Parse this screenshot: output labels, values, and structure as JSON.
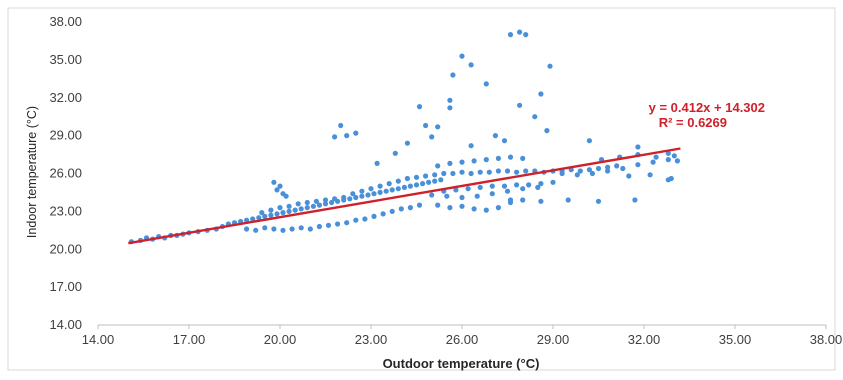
{
  "chart_data": {
    "type": "scatter",
    "xlabel": "Outdoor temperature (°C)",
    "ylabel": "Indoor temperature (°C)",
    "xlim": [
      14,
      38
    ],
    "ylim": [
      14,
      38
    ],
    "x_ticks": [
      "14.00",
      "17.00",
      "20.00",
      "23.00",
      "26.00",
      "29.00",
      "32.00",
      "35.00",
      "38.00"
    ],
    "y_ticks": [
      "14.00",
      "17.00",
      "20.00",
      "23.00",
      "26.00",
      "29.00",
      "32.00",
      "35.00",
      "38.00"
    ],
    "grid": false,
    "colors": {
      "points": "#4a90d9",
      "trendline": "#d0202a",
      "axis": "#bfbfbf"
    },
    "trendline": {
      "slope": 0.412,
      "intercept": 14.302,
      "x_range": [
        15.0,
        33.2
      ],
      "equation": "y = 0.412x + 14.302",
      "r_squared": "R² = 0.6269"
    },
    "series": [
      {
        "points": [
          [
            15.1,
            20.6
          ],
          [
            15.4,
            20.7
          ],
          [
            15.6,
            20.9
          ],
          [
            15.8,
            20.8
          ],
          [
            16.0,
            21.0
          ],
          [
            16.2,
            20.9
          ],
          [
            16.4,
            21.1
          ],
          [
            16.6,
            21.1
          ],
          [
            16.8,
            21.2
          ],
          [
            17.0,
            21.3
          ],
          [
            17.3,
            21.4
          ],
          [
            17.6,
            21.5
          ],
          [
            17.9,
            21.6
          ],
          [
            18.1,
            21.8
          ],
          [
            18.3,
            22.0
          ],
          [
            18.5,
            22.1
          ],
          [
            18.7,
            22.2
          ],
          [
            18.9,
            22.3
          ],
          [
            19.1,
            22.4
          ],
          [
            19.3,
            22.5
          ],
          [
            19.5,
            22.6
          ],
          [
            19.7,
            22.7
          ],
          [
            19.9,
            22.8
          ],
          [
            20.1,
            22.9
          ],
          [
            20.3,
            23.0
          ],
          [
            20.5,
            23.1
          ],
          [
            20.7,
            23.2
          ],
          [
            20.9,
            23.3
          ],
          [
            21.1,
            23.4
          ],
          [
            21.3,
            23.5
          ],
          [
            21.5,
            23.6
          ],
          [
            21.7,
            23.7
          ],
          [
            21.9,
            23.8
          ],
          [
            22.1,
            23.9
          ],
          [
            22.3,
            24.0
          ],
          [
            22.5,
            24.1
          ],
          [
            22.7,
            24.2
          ],
          [
            22.9,
            24.3
          ],
          [
            23.1,
            24.4
          ],
          [
            23.3,
            24.5
          ],
          [
            23.5,
            24.6
          ],
          [
            23.7,
            24.7
          ],
          [
            23.9,
            24.8
          ],
          [
            24.1,
            24.9
          ],
          [
            24.3,
            25.0
          ],
          [
            24.5,
            25.1
          ],
          [
            24.7,
            25.2
          ],
          [
            24.9,
            25.3
          ],
          [
            25.1,
            25.4
          ],
          [
            25.3,
            25.5
          ],
          [
            18.9,
            21.6
          ],
          [
            19.2,
            21.5
          ],
          [
            19.5,
            21.7
          ],
          [
            19.8,
            21.6
          ],
          [
            20.1,
            21.5
          ],
          [
            20.4,
            21.6
          ],
          [
            20.7,
            21.7
          ],
          [
            21.0,
            21.6
          ],
          [
            21.3,
            21.8
          ],
          [
            21.6,
            21.9
          ],
          [
            21.9,
            22.0
          ],
          [
            22.2,
            22.1
          ],
          [
            22.5,
            22.3
          ],
          [
            22.8,
            22.4
          ],
          [
            23.1,
            22.6
          ],
          [
            23.4,
            22.8
          ],
          [
            23.7,
            23.0
          ],
          [
            24.0,
            23.2
          ],
          [
            24.3,
            23.3
          ],
          [
            24.6,
            23.5
          ],
          [
            19.4,
            22.9
          ],
          [
            19.7,
            23.1
          ],
          [
            20.0,
            23.3
          ],
          [
            20.3,
            23.4
          ],
          [
            20.6,
            23.6
          ],
          [
            20.9,
            23.7
          ],
          [
            21.2,
            23.8
          ],
          [
            21.5,
            23.9
          ],
          [
            21.8,
            24.0
          ],
          [
            22.1,
            24.1
          ],
          [
            22.4,
            24.4
          ],
          [
            22.7,
            24.6
          ],
          [
            23.0,
            24.8
          ],
          [
            23.3,
            25.0
          ],
          [
            23.6,
            25.2
          ],
          [
            23.9,
            25.4
          ],
          [
            24.2,
            25.6
          ],
          [
            24.5,
            25.7
          ],
          [
            24.8,
            25.8
          ],
          [
            25.1,
            25.9
          ],
          [
            25.4,
            26.0
          ],
          [
            25.7,
            26.0
          ],
          [
            26.0,
            26.1
          ],
          [
            26.3,
            26.0
          ],
          [
            26.6,
            26.1
          ],
          [
            26.9,
            26.1
          ],
          [
            27.2,
            26.2
          ],
          [
            27.5,
            26.2
          ],
          [
            27.8,
            26.1
          ],
          [
            28.1,
            26.2
          ],
          [
            28.4,
            26.2
          ],
          [
            28.7,
            26.1
          ],
          [
            29.0,
            26.2
          ],
          [
            29.3,
            26.2
          ],
          [
            29.6,
            26.3
          ],
          [
            29.9,
            26.2
          ],
          [
            30.2,
            26.3
          ],
          [
            30.5,
            26.4
          ],
          [
            30.8,
            26.5
          ],
          [
            31.1,
            26.6
          ],
          [
            25.4,
            24.6
          ],
          [
            25.8,
            24.7
          ],
          [
            26.2,
            24.8
          ],
          [
            26.6,
            24.9
          ],
          [
            27.0,
            25.0
          ],
          [
            27.4,
            25.0
          ],
          [
            27.8,
            25.1
          ],
          [
            28.2,
            25.1
          ],
          [
            28.6,
            25.2
          ],
          [
            29.0,
            25.3
          ],
          [
            25.0,
            24.3
          ],
          [
            25.5,
            24.2
          ],
          [
            26.0,
            24.1
          ],
          [
            26.5,
            24.2
          ],
          [
            27.0,
            24.4
          ],
          [
            27.5,
            24.6
          ],
          [
            28.0,
            24.8
          ],
          [
            28.5,
            24.9
          ],
          [
            25.2,
            23.5
          ],
          [
            25.6,
            23.3
          ],
          [
            26.0,
            23.4
          ],
          [
            26.4,
            23.2
          ],
          [
            26.8,
            23.1
          ],
          [
            27.2,
            23.3
          ],
          [
            27.6,
            23.7
          ],
          [
            28.0,
            23.9
          ],
          [
            25.2,
            26.6
          ],
          [
            25.6,
            26.8
          ],
          [
            26.0,
            26.9
          ],
          [
            26.4,
            27.0
          ],
          [
            26.8,
            27.1
          ],
          [
            27.2,
            27.2
          ],
          [
            27.6,
            27.3
          ],
          [
            28.0,
            27.2
          ],
          [
            29.3,
            26.0
          ],
          [
            29.8,
            25.9
          ],
          [
            30.3,
            26.0
          ],
          [
            30.8,
            26.2
          ],
          [
            31.3,
            26.4
          ],
          [
            31.8,
            26.7
          ],
          [
            32.3,
            26.9
          ],
          [
            32.8,
            27.1
          ],
          [
            33.1,
            27.0
          ],
          [
            30.6,
            27.1
          ],
          [
            31.2,
            27.3
          ],
          [
            31.8,
            27.5
          ],
          [
            32.4,
            27.3
          ],
          [
            33.0,
            27.4
          ],
          [
            31.5,
            25.8
          ],
          [
            32.2,
            25.9
          ],
          [
            32.8,
            25.5
          ],
          [
            29.5,
            23.9
          ],
          [
            30.5,
            23.8
          ],
          [
            31.7,
            23.9
          ],
          [
            28.6,
            23.8
          ],
          [
            27.6,
            23.9
          ],
          [
            19.8,
            25.3
          ],
          [
            20.0,
            25.0
          ],
          [
            19.9,
            24.7
          ],
          [
            20.1,
            24.4
          ],
          [
            20.2,
            24.2
          ],
          [
            22.0,
            29.8
          ],
          [
            22.2,
            29.0
          ],
          [
            21.8,
            28.9
          ],
          [
            22.5,
            29.2
          ],
          [
            23.2,
            26.8
          ],
          [
            23.8,
            27.6
          ],
          [
            24.2,
            28.4
          ],
          [
            24.8,
            29.8
          ],
          [
            25.2,
            29.7
          ],
          [
            24.6,
            31.3
          ],
          [
            25.6,
            31.2
          ],
          [
            25.0,
            28.9
          ],
          [
            26.3,
            28.2
          ],
          [
            25.7,
            33.8
          ],
          [
            26.0,
            35.3
          ],
          [
            26.3,
            34.6
          ],
          [
            25.6,
            31.8
          ],
          [
            26.8,
            33.1
          ],
          [
            27.4,
            28.6
          ],
          [
            27.1,
            29.0
          ],
          [
            27.6,
            37.0
          ],
          [
            27.9,
            37.2
          ],
          [
            28.1,
            37.0
          ],
          [
            27.9,
            31.4
          ],
          [
            28.4,
            30.5
          ],
          [
            28.6,
            32.3
          ],
          [
            28.8,
            29.4
          ],
          [
            28.9,
            34.5
          ],
          [
            30.2,
            28.6
          ],
          [
            31.8,
            28.1
          ],
          [
            32.8,
            27.6
          ],
          [
            32.9,
            25.6
          ]
        ]
      }
    ]
  }
}
